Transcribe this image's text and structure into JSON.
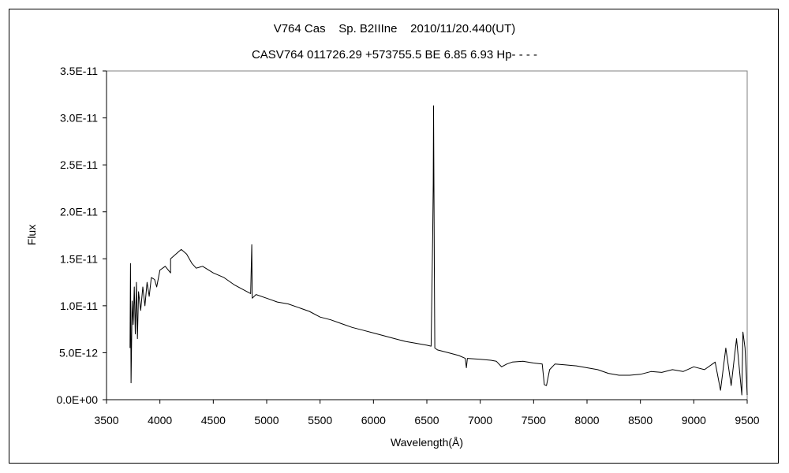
{
  "chart_data": {
    "type": "line",
    "title": "V764 Cas    Sp. B2IIIne    2010/11/20.440(UT)",
    "subtitle": "CASV764 011726.29 +573755.5 BE 6.85 6.93 Hp- - - -",
    "xlabel": "Wavelength(Å)",
    "ylabel": "Flux",
    "xlim": [
      3500,
      9500
    ],
    "ylim": [
      0,
      3.5e-11
    ],
    "x_ticks": [
      "3500",
      "4000",
      "4500",
      "5000",
      "5500",
      "6000",
      "6500",
      "7000",
      "7500",
      "8000",
      "8500",
      "9000",
      "9500"
    ],
    "y_ticks": [
      "0.0E+00",
      "5.0E-12",
      "1.0E-11",
      "1.5E-11",
      "2.0E-11",
      "2.5E-11",
      "3.0E-11",
      "3.5E-11"
    ],
    "grid": false,
    "legend": "none",
    "series": [
      {
        "color": "#000000",
        "points": [
          [
            3720,
            5.5e-12
          ],
          [
            3725,
            1.45e-11
          ],
          [
            3730,
            1.8e-12
          ],
          [
            3740,
            1.05e-11
          ],
          [
            3750,
            8e-12
          ],
          [
            3760,
            1.2e-11
          ],
          [
            3770,
            7e-12
          ],
          [
            3780,
            1.25e-11
          ],
          [
            3790,
            6.5e-12
          ],
          [
            3800,
            1.15e-11
          ],
          [
            3820,
            9.5e-12
          ],
          [
            3840,
            1.2e-11
          ],
          [
            3860,
            1e-11
          ],
          [
            3880,
            1.25e-11
          ],
          [
            3900,
            1.1e-11
          ],
          [
            3920,
            1.3e-11
          ],
          [
            3950,
            1.28e-11
          ],
          [
            3970,
            1.2e-11
          ],
          [
            4000,
            1.38e-11
          ],
          [
            4050,
            1.42e-11
          ],
          [
            4100,
            1.35e-11
          ],
          [
            4100,
            1.5e-11
          ],
          [
            4150,
            1.55e-11
          ],
          [
            4200,
            1.6e-11
          ],
          [
            4250,
            1.55e-11
          ],
          [
            4300,
            1.45e-11
          ],
          [
            4340,
            1.4e-11
          ],
          [
            4400,
            1.42e-11
          ],
          [
            4500,
            1.35e-11
          ],
          [
            4600,
            1.3e-11
          ],
          [
            4700,
            1.22e-11
          ],
          [
            4800,
            1.16e-11
          ],
          [
            4850,
            1.13e-11
          ],
          [
            4860,
            1.65e-11
          ],
          [
            4865,
            1.08e-11
          ],
          [
            4900,
            1.12e-11
          ],
          [
            5000,
            1.08e-11
          ],
          [
            5100,
            1.04e-11
          ],
          [
            5200,
            1.02e-11
          ],
          [
            5300,
            9.8e-12
          ],
          [
            5400,
            9.4e-12
          ],
          [
            5500,
            8.8e-12
          ],
          [
            5600,
            8.5e-12
          ],
          [
            5700,
            8.1e-12
          ],
          [
            5800,
            7.7e-12
          ],
          [
            5900,
            7.4e-12
          ],
          [
            6000,
            7.1e-12
          ],
          [
            6100,
            6.8e-12
          ],
          [
            6200,
            6.5e-12
          ],
          [
            6300,
            6.2e-12
          ],
          [
            6400,
            6e-12
          ],
          [
            6500,
            5.8e-12
          ],
          [
            6540,
            5.7e-12
          ],
          [
            6555,
            1.75e-11
          ],
          [
            6560,
            2.3e-11
          ],
          [
            6563,
            3.13e-11
          ],
          [
            6570,
            1.4e-11
          ],
          [
            6575,
            5.5e-12
          ],
          [
            6600,
            5.3e-12
          ],
          [
            6700,
            5e-12
          ],
          [
            6800,
            4.7e-12
          ],
          [
            6860,
            4.4e-12
          ],
          [
            6870,
            3.4e-12
          ],
          [
            6880,
            4.4e-12
          ],
          [
            7000,
            4.3e-12
          ],
          [
            7100,
            4.2e-12
          ],
          [
            7150,
            4.1e-12
          ],
          [
            7200,
            3.5e-12
          ],
          [
            7250,
            3.8e-12
          ],
          [
            7300,
            4e-12
          ],
          [
            7400,
            4.1e-12
          ],
          [
            7500,
            3.9e-12
          ],
          [
            7580,
            3.8e-12
          ],
          [
            7600,
            1.6e-12
          ],
          [
            7620,
            1.5e-12
          ],
          [
            7650,
            3.2e-12
          ],
          [
            7700,
            3.8e-12
          ],
          [
            7800,
            3.7e-12
          ],
          [
            7900,
            3.6e-12
          ],
          [
            8000,
            3.4e-12
          ],
          [
            8100,
            3.2e-12
          ],
          [
            8200,
            2.8e-12
          ],
          [
            8300,
            2.6e-12
          ],
          [
            8400,
            2.6e-12
          ],
          [
            8500,
            2.7e-12
          ],
          [
            8600,
            3e-12
          ],
          [
            8700,
            2.9e-12
          ],
          [
            8800,
            3.2e-12
          ],
          [
            8900,
            3e-12
          ],
          [
            9000,
            3.5e-12
          ],
          [
            9100,
            3.2e-12
          ],
          [
            9200,
            4e-12
          ],
          [
            9250,
            1e-12
          ],
          [
            9300,
            5.5e-12
          ],
          [
            9350,
            1.5e-12
          ],
          [
            9400,
            6.5e-12
          ],
          [
            9450,
            5e-13
          ],
          [
            9460,
            7.2e-12
          ],
          [
            9480,
            5.5e-12
          ],
          [
            9500,
            5e-13
          ]
        ]
      }
    ]
  }
}
